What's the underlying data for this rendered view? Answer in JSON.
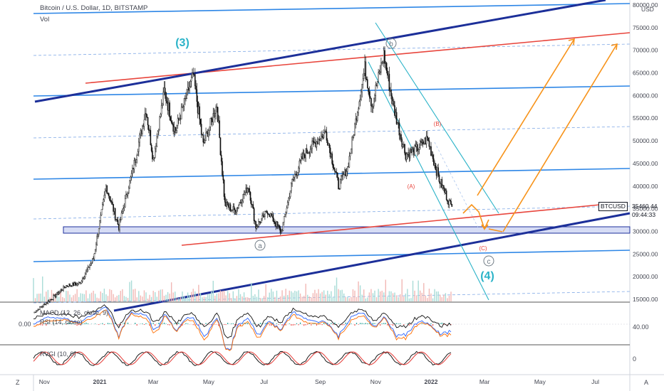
{
  "header": {
    "symbol": "Bitcoin / U.S. Dollar, 1D, BITSTAMP",
    "volume_label": "Vol",
    "currency": "USD"
  },
  "indicators": {
    "macd": "MACD (12, 26, close, 9)",
    "macd_zero": "0.00",
    "rsi": "RSI (14, close)",
    "rsi_level": "40.00",
    "rvgi": "RVGI (10, 0)",
    "rvgi_zero": "0"
  },
  "price_tag": {
    "label": "BTCUSD",
    "price": "35460.44",
    "countdown": "09:44:33"
  },
  "corner": {
    "left": "Z",
    "right": "A"
  },
  "chart_data": {
    "type": "line",
    "title": "Bitcoin / U.S. Dollar, 1D, BITSTAMP",
    "ylabel": "USD",
    "ylim": [
      15000,
      80000
    ],
    "y_ticks": [
      15000,
      20000,
      25000,
      30000,
      35000,
      40000,
      45000,
      50000,
      55000,
      60000,
      65000,
      70000,
      75000,
      80000
    ],
    "x_ticks": [
      "Nov",
      "2021",
      "Mar",
      "May",
      "Jul",
      "Sep",
      "Nov",
      "2022",
      "Mar",
      "May",
      "Jul"
    ],
    "x_tick_dates": [
      "2020-11-01",
      "2021-01-01",
      "2021-03-01",
      "2021-05-01",
      "2021-07-01",
      "2021-09-01",
      "2021-11-01",
      "2022-01-01",
      "2022-03-01",
      "2022-05-01",
      "2022-07-01"
    ],
    "series": [
      {
        "name": "BTCUSD",
        "points": [
          [
            "2020-10-20",
            12000
          ],
          [
            "2020-11-10",
            15300
          ],
          [
            "2020-11-25",
            18000
          ],
          [
            "2020-12-10",
            18500
          ],
          [
            "2020-12-25",
            24000
          ],
          [
            "2021-01-08",
            40000
          ],
          [
            "2021-01-22",
            31000
          ],
          [
            "2021-02-08",
            45000
          ],
          [
            "2021-02-21",
            57000
          ],
          [
            "2021-03-01",
            46000
          ],
          [
            "2021-03-13",
            61000
          ],
          [
            "2021-03-25",
            52000
          ],
          [
            "2021-04-14",
            64500
          ],
          [
            "2021-04-25",
            49000
          ],
          [
            "2021-05-10",
            58000
          ],
          [
            "2021-05-19",
            36000
          ],
          [
            "2021-05-30",
            34500
          ],
          [
            "2021-06-14",
            40000
          ],
          [
            "2021-06-22",
            31000
          ],
          [
            "2021-07-05",
            34500
          ],
          [
            "2021-07-20",
            29800
          ],
          [
            "2021-08-01",
            41000
          ],
          [
            "2021-08-14",
            47000
          ],
          [
            "2021-09-07",
            52000
          ],
          [
            "2021-09-21",
            40000
          ],
          [
            "2021-10-01",
            44000
          ],
          [
            "2021-10-20",
            66000
          ],
          [
            "2021-10-28",
            58000
          ],
          [
            "2021-11-10",
            69000
          ],
          [
            "2021-11-20",
            58000
          ],
          [
            "2021-12-04",
            47000
          ],
          [
            "2021-12-15",
            48000
          ],
          [
            "2021-12-28",
            50500
          ],
          [
            "2022-01-10",
            41500
          ],
          [
            "2022-01-22",
            36000
          ],
          [
            "2022-01-24",
            35460
          ]
        ]
      }
    ],
    "annotations": [
      "(3)",
      "b",
      "a",
      "(B)",
      "(A)",
      "(C)",
      "c",
      "(4)"
    ]
  }
}
